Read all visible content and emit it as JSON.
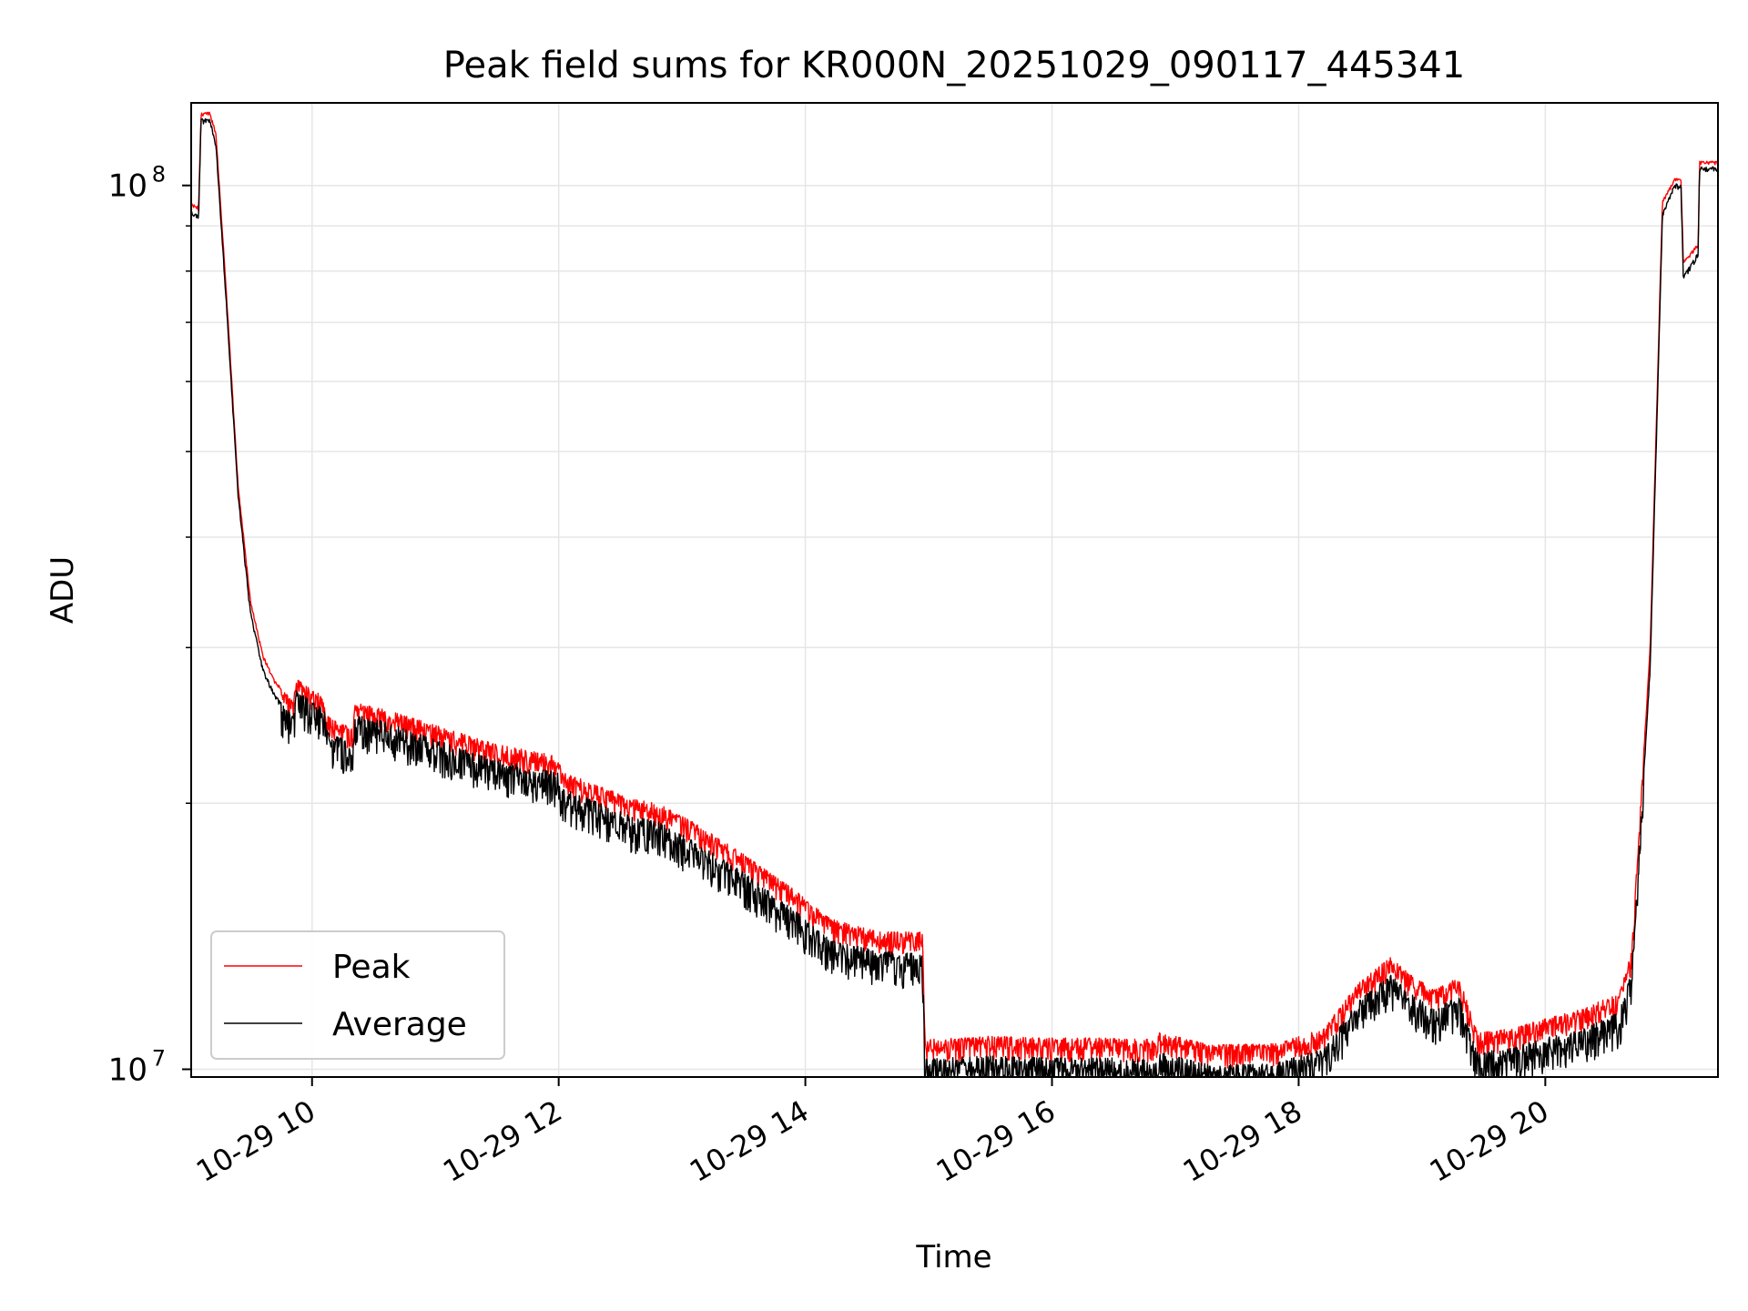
{
  "chart_data": {
    "type": "line",
    "title": "Peak field sums for KR000N_20251029_090117_445341",
    "xlabel": "Time",
    "ylabel": "ADU",
    "y_scale": "log",
    "xlim_hours": [
      9.02,
      21.4
    ],
    "ylim": [
      9800000,
      124000000
    ],
    "grid": true,
    "legend_position": "lower-left",
    "x_ticks": [
      {
        "hour": 10,
        "label": "10-29 10"
      },
      {
        "hour": 12,
        "label": "10-29 12"
      },
      {
        "hour": 14,
        "label": "10-29 14"
      },
      {
        "hour": 16,
        "label": "10-29 16"
      },
      {
        "hour": 18,
        "label": "10-29 18"
      },
      {
        "hour": 20,
        "label": "10-29 20"
      }
    ],
    "y_ticks": [
      {
        "value": 10000000,
        "base": "10",
        "exp": "7"
      },
      {
        "value": 100000000,
        "base": "10",
        "exp": "8"
      }
    ],
    "series": [
      {
        "name": "Peak",
        "color": "#ff0000",
        "x": [
          9.02,
          9.08,
          9.1,
          9.17,
          9.22,
          9.3,
          9.4,
          9.5,
          9.6,
          9.7,
          9.8,
          9.85,
          9.87,
          9.98,
          10.1,
          10.12,
          10.33,
          10.35,
          10.6,
          11.0,
          11.5,
          12.0,
          12.02,
          12.3,
          12.6,
          12.8,
          13.1,
          13.5,
          13.9,
          14.2,
          14.6,
          14.95,
          14.97,
          15.5,
          16.0,
          16.5,
          16.85,
          16.87,
          17.3,
          17.8,
          18.2,
          18.5,
          18.75,
          18.9,
          19.1,
          19.3,
          19.45,
          19.7,
          20.0,
          20.3,
          20.6,
          20.7,
          20.85,
          20.95,
          21.05,
          21.1,
          21.12,
          21.24,
          21.25,
          21.4
        ],
        "values": [
          95500000,
          94500000,
          121000000,
          121000000,
          115000000,
          78000000,
          46000000,
          34000000,
          29500000,
          27500000,
          26500000,
          26000000,
          27700000,
          27000000,
          26500000,
          25100000,
          24300000,
          26000000,
          25500000,
          24500000,
          23300000,
          22600000,
          21700000,
          21000000,
          20200000,
          20000000,
          19000000,
          17500000,
          16000000,
          14800000,
          14300000,
          14300000,
          10800000,
          10900000,
          10850000,
          10850000,
          10800000,
          11000000,
          10650000,
          10700000,
          11100000,
          12600000,
          13400000,
          12800000,
          12300000,
          12700000,
          11000000,
          11100000,
          11400000,
          11700000,
          12200000,
          13600000,
          30000000,
          96000000,
          102000000,
          101500000,
          82000000,
          86000000,
          106500000,
          106500000
        ],
        "noise": 0.06
      },
      {
        "name": "Average",
        "color": "#000000",
        "x": [
          9.02,
          9.08,
          9.1,
          9.17,
          9.22,
          9.3,
          9.4,
          9.5,
          9.6,
          9.7,
          9.8,
          9.85,
          9.87,
          9.98,
          10.1,
          10.12,
          10.33,
          10.35,
          10.6,
          11.0,
          11.5,
          12.0,
          12.02,
          12.3,
          12.6,
          12.8,
          13.1,
          13.5,
          13.9,
          14.2,
          14.6,
          14.95,
          14.97,
          15.5,
          16.0,
          16.5,
          16.85,
          16.87,
          17.3,
          17.8,
          18.2,
          18.5,
          18.75,
          18.9,
          19.1,
          19.3,
          19.45,
          19.7,
          20.0,
          20.3,
          20.6,
          20.7,
          20.85,
          20.95,
          21.05,
          21.1,
          21.12,
          21.24,
          21.25,
          21.4
        ],
        "values": [
          93500000,
          92500000,
          119000000,
          119000000,
          112000000,
          76000000,
          45000000,
          33000000,
          28500000,
          26500000,
          25500000,
          25000000,
          26800000,
          26200000,
          25500000,
          24200000,
          23300000,
          25200000,
          24700000,
          23600000,
          22400000,
          21700000,
          20800000,
          20100000,
          19300000,
          19100000,
          18100000,
          16700000,
          15200000,
          14000000,
          13600000,
          13500000,
          10300000,
          10350000,
          10300000,
          10300000,
          10250000,
          10450000,
          10100000,
          10150000,
          10550000,
          12000000,
          12800000,
          12200000,
          11700000,
          12100000,
          10450000,
          10550000,
          10850000,
          11100000,
          11600000,
          12900000,
          28500000,
          93000000,
          100500000,
          100000000,
          79000000,
          84000000,
          105000000,
          105000000
        ],
        "noise": 0.09
      }
    ],
    "annotations": []
  }
}
